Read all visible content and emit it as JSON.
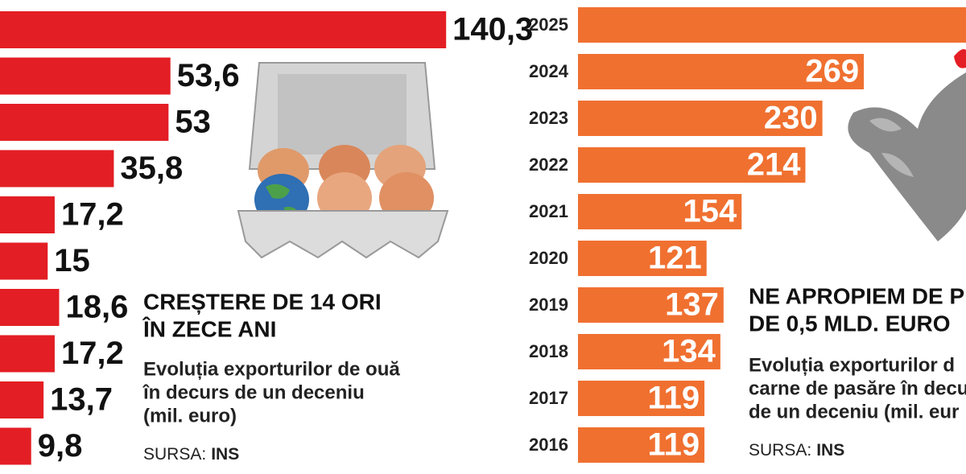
{
  "chart_data": [
    {
      "type": "bar",
      "orientation": "horizontal",
      "color": "#e31e24",
      "title": [
        "CREȘTERE DE 14 ORI",
        "ÎN ZECE ANI"
      ],
      "subtitle": [
        "Evoluția exporturilor de ouă",
        "în decurs de un deceniu",
        "(mil. euro)"
      ],
      "source_label": "SURSA:",
      "source": "INS",
      "values": [
        140.3,
        53.6,
        53,
        35.8,
        17.2,
        15,
        18.6,
        17.2,
        13.7,
        9.8
      ],
      "value_labels": [
        "140,3",
        "53,6",
        "53",
        "35,8",
        "17,2",
        "15",
        "18,6",
        "17,2",
        "13,7",
        "9,8"
      ]
    },
    {
      "type": "bar",
      "orientation": "horizontal",
      "color": "#f07030",
      "title": [
        "NE APROPIEM DE PR",
        "DE 0,5 MLD. EURO"
      ],
      "subtitle": [
        "Evoluția exporturilor d",
        "carne de pasăre în decu",
        "de un deceniu (mil. eur"
      ],
      "source_label": "SURSA:",
      "source": "INS",
      "categories": [
        "2025",
        "2024",
        "2023",
        "2022",
        "2021",
        "2020",
        "2019",
        "2018",
        "2017",
        "2016"
      ],
      "values": [
        400,
        269,
        230,
        214,
        154,
        121,
        137,
        134,
        119,
        119
      ],
      "value_labels": [
        null,
        "269",
        "230",
        "214",
        "154",
        "121",
        "137",
        "134",
        "119",
        "119"
      ]
    }
  ]
}
